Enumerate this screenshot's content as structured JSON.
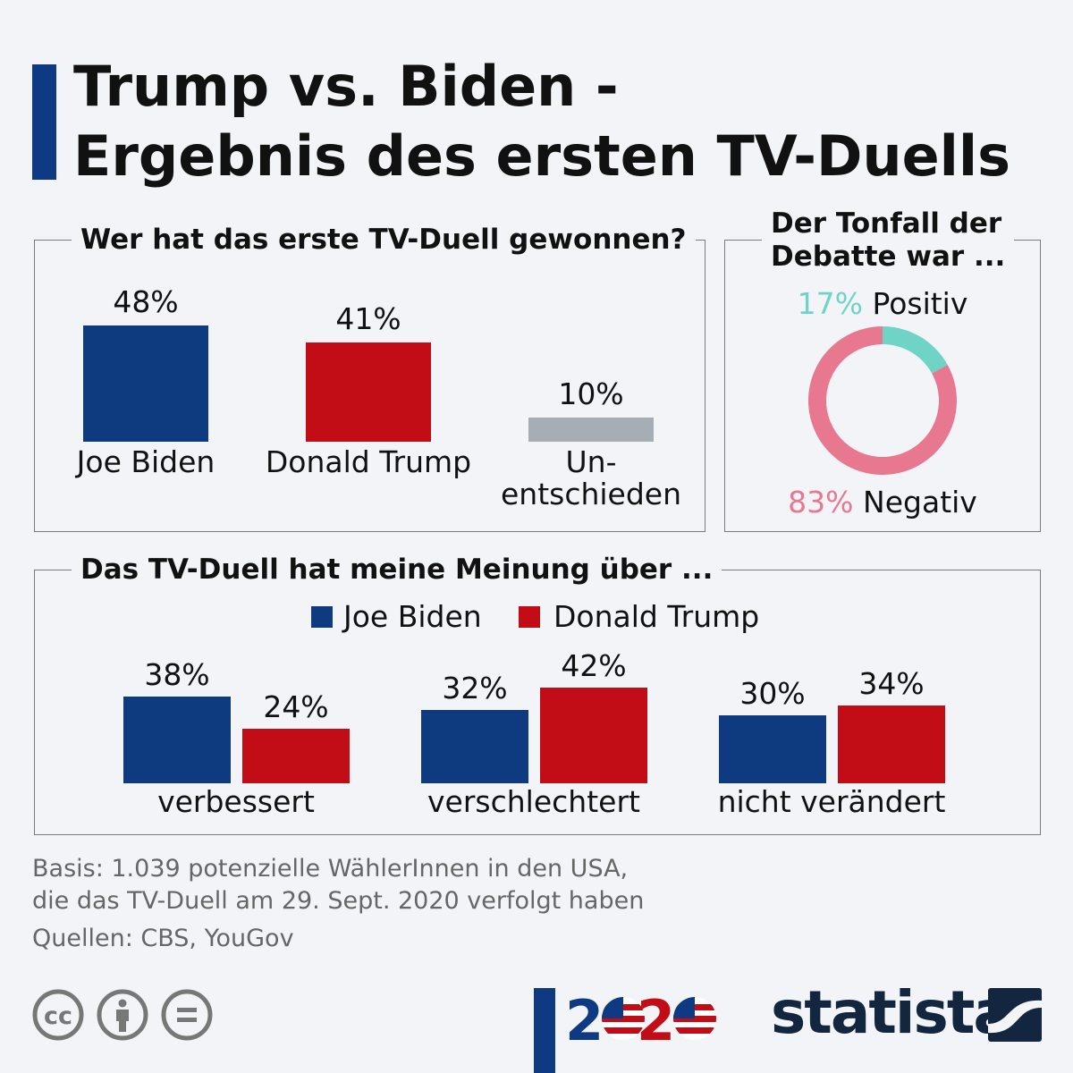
{
  "title": {
    "line1": "Trump vs. Biden -",
    "line2": "Ergebnis des ersten TV-Duells"
  },
  "colors": {
    "biden": "#0e3a80",
    "trump": "#c20c16",
    "undecided": "#a7adb4",
    "positive": "#6fd3c6",
    "negative": "#e8788f",
    "accent": "#0e3a84"
  },
  "chart_data": [
    {
      "type": "bar",
      "title": "Wer hat das erste TV-Duell gewonnen?",
      "categories": [
        "Joe Biden",
        "Donald Trump",
        "Un-\nentschieden"
      ],
      "values": [
        48,
        41,
        10
      ],
      "labels": [
        "48%",
        "41%",
        "10%"
      ],
      "unit": "%"
    },
    {
      "type": "pie",
      "donut": true,
      "title": "Der Tonfall der Debatte war ...",
      "slices": [
        {
          "name": "Positiv",
          "value": 17,
          "label": "17%"
        },
        {
          "name": "Negativ",
          "value": 83,
          "label": "83%"
        }
      ]
    },
    {
      "type": "bar",
      "title": "Das TV-Duell hat meine Meinung über ...",
      "categories": [
        "verbessert",
        "verschlechtert",
        "nicht verändert"
      ],
      "series": [
        {
          "name": "Joe Biden",
          "values": [
            38,
            32,
            30
          ],
          "labels": [
            "38%",
            "32%",
            "30%"
          ]
        },
        {
          "name": "Donald Trump",
          "values": [
            24,
            42,
            34
          ],
          "labels": [
            "24%",
            "42%",
            "34%"
          ]
        }
      ],
      "legend": "top",
      "unit": "%"
    }
  ],
  "tone": {
    "title1": "Der Tonfall der",
    "title2": "Debatte war ..."
  },
  "footer": {
    "basis1": "Basis: 1.039 potenzielle WählerInnen in den USA,",
    "basis2": "die das TV-Duell am 29. Sept. 2020 verfolgt haben",
    "sources": "Quellen: CBS, YouGov"
  },
  "logos": {
    "election": "2020",
    "brand": "statista"
  },
  "icons": [
    "cc-icon",
    "attribution-icon",
    "no-derivatives-icon"
  ]
}
